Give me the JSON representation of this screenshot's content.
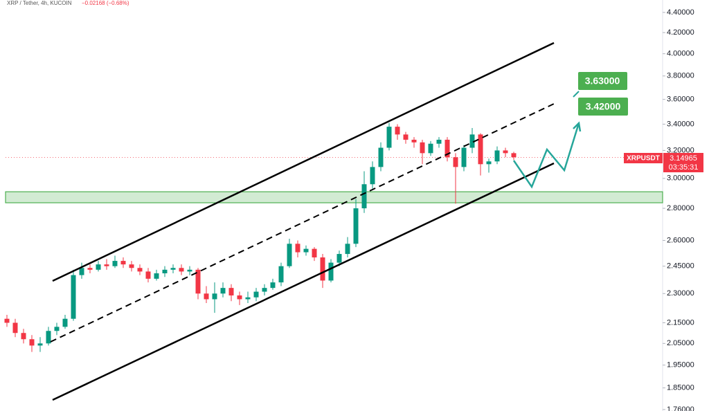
{
  "chart_data": {
    "type": "candlestick",
    "title": "XRP / Tether, 4h, KUCOIN",
    "change": "−0.02168 (−0.68%)",
    "log_scale": true,
    "ylim": [
      1.754,
      4.528
    ],
    "yticks": [
      {
        "value": 4.4,
        "label": "4.40000"
      },
      {
        "value": 4.2,
        "label": "4.20000"
      },
      {
        "value": 4.0,
        "label": "4.00000"
      },
      {
        "value": 3.8,
        "label": "3.80000"
      },
      {
        "value": 3.6,
        "label": "3.60000"
      },
      {
        "value": 3.4,
        "label": "3.40000"
      },
      {
        "value": 3.2,
        "label": "3.20000"
      },
      {
        "value": 3.0,
        "label": "3.00000"
      },
      {
        "value": 2.8,
        "label": "2.80000"
      },
      {
        "value": 2.6,
        "label": "2.60000"
      },
      {
        "value": 2.45,
        "label": "2.45000"
      },
      {
        "value": 2.3,
        "label": "2.30000"
      },
      {
        "value": 2.15,
        "label": "2.15000"
      },
      {
        "value": 2.05,
        "label": "2.05000"
      },
      {
        "value": 1.95,
        "label": "1.95000"
      },
      {
        "value": 1.85,
        "label": "1.85000"
      },
      {
        "value": 1.76,
        "label": "1.76000"
      }
    ],
    "up_color": "#089981",
    "down_color": "#f23645",
    "open": [
      2.17,
      2.15,
      2.1,
      2.07,
      2.04,
      2.05,
      2.11,
      2.13,
      2.17,
      2.4,
      2.44,
      2.43,
      2.46,
      2.45,
      2.48,
      2.46,
      2.44,
      2.42,
      2.38,
      2.41,
      2.43,
      2.44,
      2.42,
      2.43,
      2.3,
      2.27,
      2.3,
      2.33,
      2.29,
      2.27,
      2.28,
      2.31,
      2.33,
      2.36,
      2.45,
      2.58,
      2.53,
      2.55,
      2.5,
      2.37,
      2.47,
      2.52,
      2.58,
      2.8,
      2.96,
      3.08,
      3.22,
      3.38,
      3.32,
      3.28,
      3.26,
      3.18,
      3.25,
      3.28,
      3.15,
      3.08,
      3.22,
      3.32,
      3.1,
      3.12,
      3.2,
      3.18
    ],
    "high": [
      2.19,
      2.17,
      2.12,
      2.09,
      2.08,
      2.13,
      2.15,
      2.19,
      2.43,
      2.47,
      2.46,
      2.48,
      2.49,
      2.51,
      2.5,
      2.48,
      2.46,
      2.44,
      2.43,
      2.45,
      2.46,
      2.46,
      2.45,
      2.44,
      2.34,
      2.36,
      2.36,
      2.35,
      2.31,
      2.31,
      2.33,
      2.35,
      2.38,
      2.47,
      2.61,
      2.6,
      2.57,
      2.56,
      2.52,
      2.49,
      2.54,
      2.62,
      2.86,
      3.05,
      3.12,
      3.26,
      3.41,
      3.4,
      3.34,
      3.3,
      3.28,
      3.27,
      3.3,
      3.3,
      3.18,
      3.24,
      3.37,
      3.33,
      3.14,
      3.23,
      3.22,
      3.19
    ],
    "low": [
      2.13,
      2.08,
      2.05,
      2.01,
      2.01,
      2.04,
      2.09,
      2.12,
      2.16,
      2.38,
      2.41,
      2.42,
      2.43,
      2.44,
      2.44,
      2.42,
      2.4,
      2.36,
      2.37,
      2.39,
      2.41,
      2.4,
      2.4,
      2.27,
      2.25,
      2.2,
      2.28,
      2.26,
      2.24,
      2.25,
      2.26,
      2.29,
      2.32,
      2.34,
      2.44,
      2.5,
      2.51,
      2.48,
      2.33,
      2.36,
      2.45,
      2.5,
      2.56,
      2.77,
      2.93,
      3.05,
      3.2,
      3.28,
      3.25,
      3.22,
      3.1,
      3.16,
      3.22,
      3.12,
      2.83,
      3.05,
      3.18,
      3.02,
      3.04,
      3.1,
      3.15,
      3.13
    ],
    "close": [
      2.15,
      2.1,
      2.07,
      2.04,
      2.05,
      2.11,
      2.13,
      2.17,
      2.4,
      2.44,
      2.43,
      2.46,
      2.45,
      2.48,
      2.46,
      2.44,
      2.42,
      2.38,
      2.41,
      2.43,
      2.44,
      2.42,
      2.43,
      2.3,
      2.27,
      2.3,
      2.33,
      2.29,
      2.27,
      2.28,
      2.31,
      2.33,
      2.36,
      2.45,
      2.58,
      2.53,
      2.55,
      2.5,
      2.37,
      2.47,
      2.52,
      2.58,
      2.8,
      2.96,
      3.08,
      3.22,
      3.38,
      3.32,
      3.28,
      3.26,
      3.18,
      3.25,
      3.28,
      3.15,
      3.08,
      3.22,
      3.32,
      3.1,
      3.12,
      3.2,
      3.18,
      3.15
    ],
    "support_zone": [
      2.836,
      2.909
    ],
    "zone_color": "#4caf50",
    "symbol": "XRPUSDT",
    "last_price": {
      "value": 3.14965,
      "label": "3.14965"
    },
    "countdown": "03:35:31",
    "targets": [
      "3.63000",
      "3.42000"
    ]
  }
}
